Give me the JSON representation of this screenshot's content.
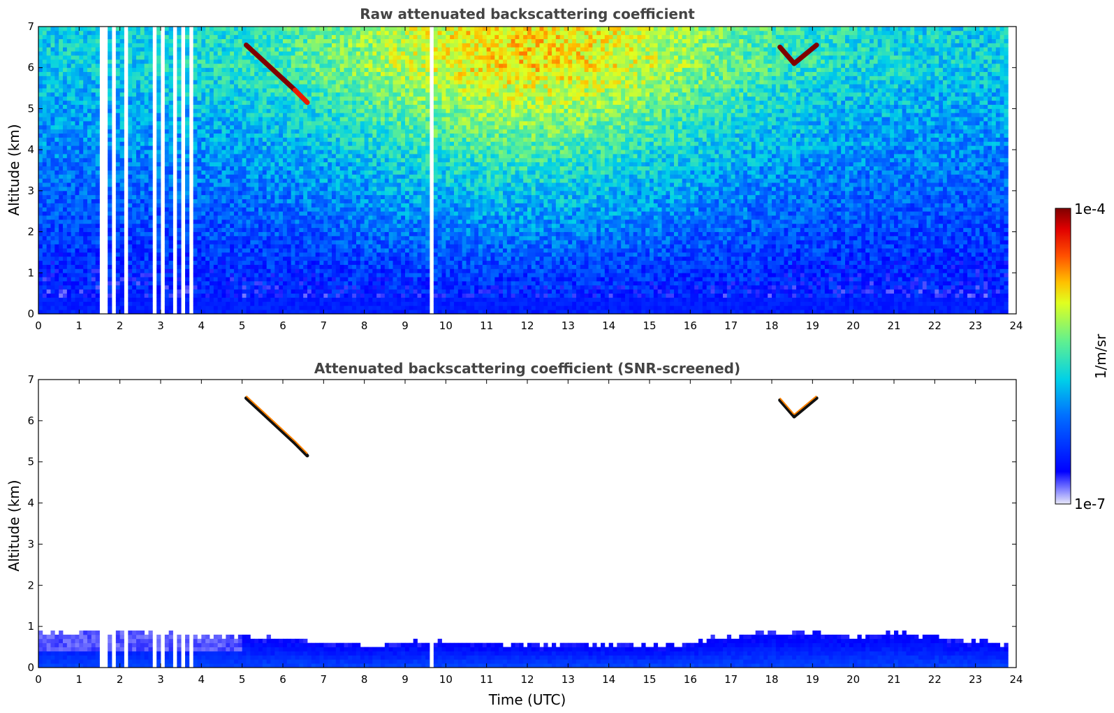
{
  "chart_data": [
    {
      "type": "heatmap",
      "title": "Raw attenuated backscattering coefficient",
      "xlabel": "",
      "ylabel": "Altitude (km)",
      "xlim": [
        0,
        24
      ],
      "ylim": [
        0,
        7
      ],
      "x_ticks": [
        "0",
        "1",
        "2",
        "3",
        "4",
        "5",
        "6",
        "7",
        "8",
        "9",
        "10",
        "11",
        "12",
        "13",
        "14",
        "15",
        "16",
        "17",
        "18",
        "19",
        "20",
        "21",
        "22",
        "23",
        "24"
      ],
      "y_ticks": [
        "0",
        "1",
        "2",
        "3",
        "4",
        "5",
        "6",
        "7"
      ],
      "data_end_hour": 23.8,
      "gap_hours": [
        [
          1.48,
          1.62
        ],
        [
          1.78,
          1.86
        ],
        [
          1.95,
          2.0
        ],
        [
          2.05,
          2.13
        ],
        [
          2.63,
          2.7
        ],
        [
          2.78,
          2.88
        ],
        [
          3.0,
          3.05
        ],
        [
          3.15,
          3.2
        ],
        [
          3.3,
          3.4
        ],
        [
          3.48,
          3.52
        ],
        [
          3.62,
          3.72
        ],
        [
          9.45,
          9.5
        ],
        [
          9.58,
          9.7
        ],
        [
          10.05,
          10.1
        ]
      ],
      "clouds": [
        {
          "x0": 5.1,
          "y0": 6.55,
          "x1": 6.3,
          "y1": 5.45,
          "value": 1.0
        },
        {
          "x0": 6.3,
          "y0": 5.45,
          "x1": 6.6,
          "y1": 5.15,
          "value": 0.9
        },
        {
          "x0": 18.2,
          "y0": 6.5,
          "x1": 18.55,
          "y1": 6.1,
          "value": 1.0
        },
        {
          "x0": 18.55,
          "y0": 6.1,
          "x1": 19.1,
          "y1": 6.55,
          "value": 1.0
        }
      ]
    },
    {
      "type": "heatmap",
      "title": "Attenuated backscattering coefficient (SNR-screened)",
      "xlabel": "Time (UTC)",
      "ylabel": "Altitude (km)",
      "xlim": [
        0,
        24
      ],
      "ylim": [
        0,
        7
      ],
      "x_ticks": [
        "0",
        "1",
        "2",
        "3",
        "4",
        "5",
        "6",
        "7",
        "8",
        "9",
        "10",
        "11",
        "12",
        "13",
        "14",
        "15",
        "16",
        "17",
        "18",
        "19",
        "20",
        "21",
        "22",
        "23",
        "24"
      ],
      "y_ticks": [
        "0",
        "1",
        "2",
        "3",
        "4",
        "5",
        "6",
        "7"
      ],
      "boundary_layer_top_km": [
        [
          0,
          0.8
        ],
        [
          2,
          0.85
        ],
        [
          4,
          0.75
        ],
        [
          5,
          0.7
        ],
        [
          6,
          0.65
        ],
        [
          7,
          0.55
        ],
        [
          8,
          0.5
        ],
        [
          9,
          0.55
        ],
        [
          10,
          0.6
        ],
        [
          11,
          0.55
        ],
        [
          12,
          0.5
        ],
        [
          13,
          0.55
        ],
        [
          14,
          0.5
        ],
        [
          15,
          0.45
        ],
        [
          16,
          0.55
        ],
        [
          17,
          0.75
        ],
        [
          18,
          0.8
        ],
        [
          19,
          0.75
        ],
        [
          20,
          0.7
        ],
        [
          21,
          0.8
        ],
        [
          22,
          0.7
        ],
        [
          23,
          0.6
        ],
        [
          23.8,
          0.5
        ]
      ]
    }
  ],
  "colorbar": {
    "label": "1/m/sr",
    "max_label": "1e-4",
    "min_label": "1e-7"
  }
}
